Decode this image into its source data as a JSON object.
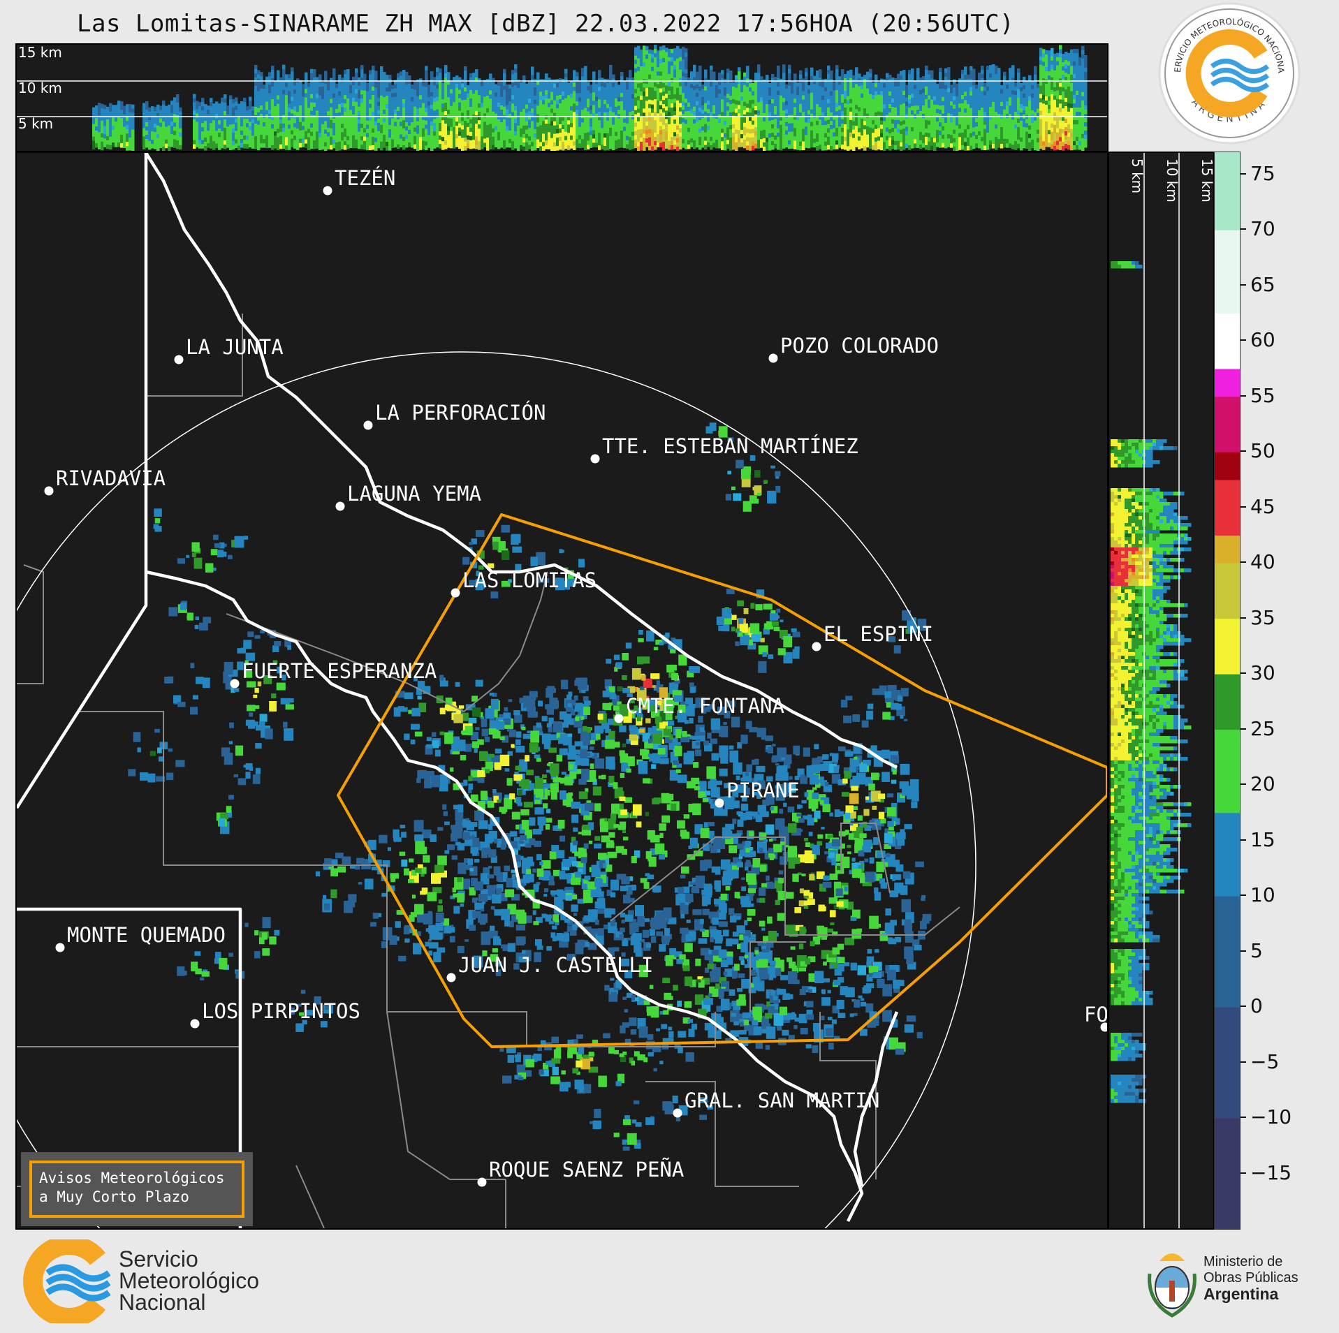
{
  "title": "Las Lomitas-SINARAME ZH MAX [dBZ] 22.03.2022 17:56HOA (20:56UTC)",
  "top_panel": {
    "altitude_labels": [
      "15 km",
      "10 km",
      "5 km"
    ]
  },
  "side_panel": {
    "altitude_labels": [
      "5 km",
      "10 km",
      "15 km"
    ]
  },
  "colorbar": {
    "unit": "dBZ",
    "ticks": [
      75,
      70,
      65,
      60,
      55,
      50,
      45,
      40,
      35,
      30,
      25,
      20,
      15,
      10,
      5,
      0,
      -5,
      -10,
      -15
    ],
    "tick_labels": [
      "75",
      "70",
      "65",
      "60",
      "55",
      "50",
      "45",
      "40",
      "35",
      "30",
      "25",
      "20",
      "15",
      "10",
      "5",
      "0",
      "−5",
      "−10",
      "−15"
    ],
    "range": [
      -20,
      77
    ],
    "stops": [
      {
        "v": -20,
        "c": "#3a3a66"
      },
      {
        "v": -10,
        "c": "#334b7c"
      },
      {
        "v": 0,
        "c": "#2a6496"
      },
      {
        "v": 10,
        "c": "#2586bf"
      },
      {
        "v": 17.5,
        "c": "#2aa8d8"
      },
      {
        "v": 18,
        "c": "#46d83a"
      },
      {
        "v": 25,
        "c": "#2f9a2a"
      },
      {
        "v": 29.5,
        "c": "#1c6a1c"
      },
      {
        "v": 30,
        "c": "#f2f230"
      },
      {
        "v": 36,
        "c": "#c8c83a"
      },
      {
        "v": 39,
        "c": "#d8b02a"
      },
      {
        "v": 42,
        "c": "#f08a20"
      },
      {
        "v": 43,
        "c": "#e8303a"
      },
      {
        "v": 48,
        "c": "#a00010"
      },
      {
        "v": 50,
        "c": "#d0106a"
      },
      {
        "v": 55,
        "c": "#f020e0"
      },
      {
        "v": 58,
        "c": "#900090"
      },
      {
        "v": 58.5,
        "c": "#ffffff"
      },
      {
        "v": 62,
        "c": "#e8f8f0"
      },
      {
        "v": 70,
        "c": "#a8e8c8"
      },
      {
        "v": 77,
        "c": "#78d8b0"
      }
    ]
  },
  "places": [
    {
      "name": "TEZÉN"
    },
    {
      "name": "LA JUNTA"
    },
    {
      "name": "POZO COLORADO"
    },
    {
      "name": "LA PERFORACIÓN"
    },
    {
      "name": "TTE. ESTEBAN MARTÍNEZ"
    },
    {
      "name": "RIVADAVIA"
    },
    {
      "name": "LAGUNA YEMA"
    },
    {
      "name": "LAS LOMITAS"
    },
    {
      "name": "EL ESPINI"
    },
    {
      "name": "FUERTE ESPERANZA"
    },
    {
      "name": "CMTE. FONTANA"
    },
    {
      "name": "PIRANE"
    },
    {
      "name": "MONTE QUEMADO"
    },
    {
      "name": "JUAN J. CASTELLI"
    },
    {
      "name": "LOS PIRPINTOS"
    },
    {
      "name": "FO"
    },
    {
      "name": "GRAL. SAN MARTIN"
    },
    {
      "name": "ROQUE SAENZ PEÑA"
    }
  ],
  "colors": {
    "background": "#1b1b1b",
    "warning_polygon": "#f5a000",
    "borders": "#ffffff",
    "districts": "#8a8a8a"
  },
  "avisos": {
    "line1": "Avisos Meteorológicos",
    "line2": "a Muy Corto Plazo"
  },
  "footer": {
    "smn_line1": "Servicio",
    "smn_line2": "Meteorológico",
    "smn_line3": "Nacional",
    "ministerio_line1": "Ministerio de",
    "ministerio_line2": "Obras Públicas",
    "ministerio_line3": "Argentina"
  },
  "seal": {
    "arc_text": "SERVICIO METEOROLÓGICO NACIONAL",
    "bottom_text": "ARGENTINA"
  }
}
